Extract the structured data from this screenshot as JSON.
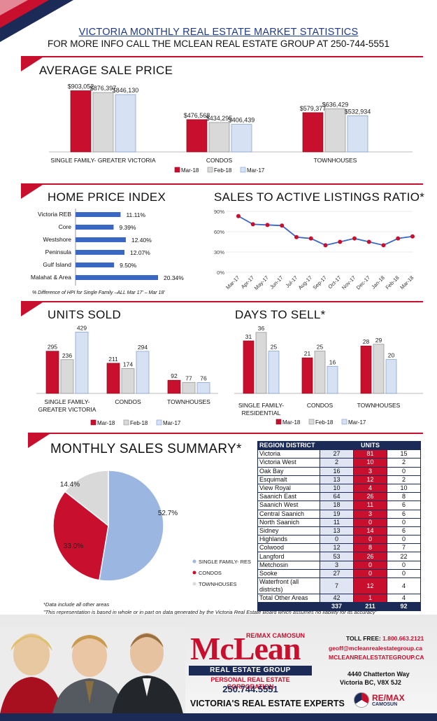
{
  "header": {
    "title": "VICTORIA MONTHLY REAL ESTATE MARKET STATISTICS",
    "subtitle": "FOR MORE INFO CALL THE MCLEAN REAL ESTATE GROUP AT 250-744-5551"
  },
  "colors": {
    "red": "#c8102e",
    "gray": "#d9d9d9",
    "lightblue": "#d6e2f3",
    "navy": "#1b2a56",
    "chartblue": "#3a66c4",
    "pieblue": "#9bb6e0"
  },
  "legend3": [
    "Mar-18",
    "Feb-18",
    "Mar-17"
  ],
  "chart_data": [
    {
      "id": "avg_sale_price",
      "type": "bar",
      "title": "AVERAGE SALE PRICE",
      "categories": [
        "SINGLE FAMILY- GREATER VICTORIA",
        "CONDOS",
        "TOWNHOUSES"
      ],
      "series": [
        {
          "name": "Mar-18",
          "values": [
            903052,
            476568,
            579377
          ],
          "labels": [
            "$903,052",
            "$476,568",
            "$579,377"
          ]
        },
        {
          "name": "Feb-18",
          "values": [
            876397,
            434295,
            636429
          ],
          "labels": [
            "$876,397",
            "$434,295",
            "$636,429"
          ]
        },
        {
          "name": "Mar-17",
          "values": [
            846130,
            406439,
            532934
          ],
          "labels": [
            "$846,130",
            "$406,439",
            "$532,934"
          ]
        }
      ],
      "ylim": [
        0,
        950000
      ]
    },
    {
      "id": "home_price_index",
      "type": "bar",
      "orientation": "horizontal",
      "title": "HOME PRICE INDEX",
      "categories": [
        "Victoria REB",
        "Core",
        "Westshore",
        "Peninsula",
        "Gulf Island",
        "Malahat & Area"
      ],
      "values": [
        11.11,
        9.39,
        12.4,
        12.07,
        9.5,
        20.34
      ],
      "labels": [
        "11.11%",
        "9.39%",
        "12.40%",
        "12.07%",
        "9.50%",
        "20.34%"
      ],
      "caption": "% Difference of HPI for Single Family –ALL Mar 17' – Mar 18'",
      "xlim": [
        0,
        22
      ]
    },
    {
      "id": "sales_to_active",
      "type": "line",
      "title": "SALES TO ACTIVE LISTINGS RATIO*",
      "x": [
        "Mar-17",
        "Apr-17",
        "May-17",
        "Jun-17",
        "Jul-17",
        "Aug-17",
        "Sep-17",
        "Oct-17",
        "Nov-17",
        "Dec-17",
        "Jan-18",
        "Feb-18",
        "Mar-18"
      ],
      "values": [
        83,
        71,
        70,
        69,
        52,
        50,
        40,
        45,
        50,
        45,
        40,
        50,
        53
      ],
      "yticks": [
        "0%",
        "30%",
        "60%",
        "90%"
      ],
      "ylim": [
        0,
        90
      ]
    },
    {
      "id": "units_sold",
      "type": "bar",
      "title": "UNITS SOLD",
      "categories": [
        "SINGLE FAMILY-\nGREATER VICTORIA",
        "CONDOS",
        "TOWNHOUSES"
      ],
      "series": [
        {
          "name": "Mar-18",
          "values": [
            295,
            211,
            92
          ]
        },
        {
          "name": "Feb-18",
          "values": [
            236,
            174,
            77
          ]
        },
        {
          "name": "Mar-17",
          "values": [
            429,
            294,
            76
          ]
        }
      ],
      "ylim": [
        0,
        450
      ]
    },
    {
      "id": "days_to_sell",
      "type": "bar",
      "title": "DAYS TO SELL*",
      "categories": [
        "SINGLE FAMILY-\nRESIDENTIAL",
        "CONDOS",
        "TOWNHOUSES"
      ],
      "series": [
        {
          "name": "Mar-18",
          "values": [
            31,
            21,
            28
          ]
        },
        {
          "name": "Feb-18",
          "values": [
            36,
            25,
            29
          ]
        },
        {
          "name": "Mar-17",
          "values": [
            25,
            16,
            20
          ]
        }
      ],
      "ylim": [
        0,
        38
      ]
    },
    {
      "id": "monthly_sales_summary",
      "type": "pie",
      "title": "MONTHLY SALES SUMMARY*",
      "slices": [
        {
          "name": "SINGLE FAMILY- RES",
          "value": 52.7,
          "label": "52.7%"
        },
        {
          "name": "CONDOS",
          "value": 33.0,
          "label": "33.0%"
        },
        {
          "name": "TOWNHOUSES",
          "value": 14.4,
          "label": "14.4%"
        }
      ]
    }
  ],
  "region_table": {
    "header_region": "REGION DISTRICT",
    "header_units": "UNITS",
    "rows": [
      {
        "region": "Victoria",
        "a": "27",
        "b": "81",
        "c": "15"
      },
      {
        "region": "Victoria West",
        "a": "2",
        "b": "10",
        "c": "2"
      },
      {
        "region": "Oak Bay",
        "a": "16",
        "b": "3",
        "c": "0"
      },
      {
        "region": "Esquimalt",
        "a": "13",
        "b": "12",
        "c": "2"
      },
      {
        "region": "View Royal",
        "a": "10",
        "b": "4",
        "c": "10"
      },
      {
        "region": "Saanich East",
        "a": "64",
        "b": "26",
        "c": "8"
      },
      {
        "region": "Saanich West",
        "a": "18",
        "b": "11",
        "c": "6"
      },
      {
        "region": "Central Saanich",
        "a": "19",
        "b": "3",
        "c": "6"
      },
      {
        "region": "North Saanich",
        "a": "11",
        "b": "0",
        "c": "0"
      },
      {
        "region": "Sidney",
        "a": "13",
        "b": "14",
        "c": "6"
      },
      {
        "region": "Highlands",
        "a": "0",
        "b": "0",
        "c": "0"
      },
      {
        "region": "Colwood",
        "a": "12",
        "b": "8",
        "c": "7"
      },
      {
        "region": "Langford",
        "a": "53",
        "b": "26",
        "c": "22"
      },
      {
        "region": "Metchosin",
        "a": "3",
        "b": "0",
        "c": "0"
      },
      {
        "region": "Sooke",
        "a": "27",
        "b": "0",
        "c": "0"
      },
      {
        "region": "Waterfront (all districts)",
        "a": "7",
        "b": "12",
        "c": "4"
      },
      {
        "region": "Total Other Areas",
        "a": "42",
        "b": "1",
        "c": "4"
      }
    ],
    "totals": {
      "a": "337",
      "b": "211",
      "c": "92"
    }
  },
  "notes": {
    "data_note": "*Data include all other areas",
    "disclaimer": "\"This representation is based in whole or in part on data generated by the Victoria Real Estate Board which assumes no liability for its accuracy\""
  },
  "footer": {
    "logo_text": "McLean",
    "brokerage": "RE/MAX CAMOSUN",
    "group": "REAL ESTATE GROUP",
    "corp": "PERSONAL REAL ESTATE CORPORATION",
    "phone": "250.744.5551",
    "tagline": "VICTORIA'S REAL ESTATE EXPERTS",
    "tollfree_label": "TOLL FREE:",
    "tollfree_number": "1.800.663.2121",
    "email": "geoff@mcleanrealestategroup.ca",
    "website": "MCLEANREALESTATEGROUP.CA",
    "address1": "4440 Chatterton Way",
    "address2": "Victoria BC, V8X 5J2",
    "remax": "RE/MAX",
    "remax_sub": "CAMOSUN"
  }
}
